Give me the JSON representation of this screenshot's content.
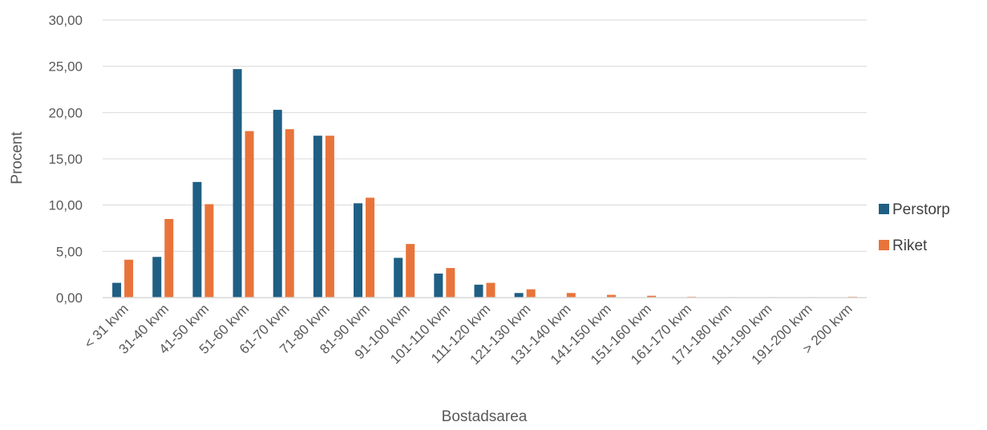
{
  "chart_data": {
    "type": "bar",
    "title": "",
    "xlabel": "Bostadsarea",
    "ylabel": "Procent",
    "ylim": [
      0,
      30
    ],
    "yticks": [
      "0,00",
      "5,00",
      "10,00",
      "15,00",
      "20,00",
      "25,00",
      "30,00"
    ],
    "grid": true,
    "legend_position": "right",
    "categories": [
      "< 31 kvm",
      "31-40 kvm",
      "41-50 kvm",
      "51-60 kvm",
      "61-70 kvm",
      "71-80 kvm",
      "81-90 kvm",
      "91-100 kvm",
      "101-110 kvm",
      "111-120 kvm",
      "121-130 kvm",
      "131-140 kvm",
      "141-150 kvm",
      "151-160 kvm",
      "161-170 kvm",
      "171-180 kvm",
      "181-190 kvm",
      "191-200 kvm",
      "> 200 kvm"
    ],
    "series": [
      {
        "name": "Perstorp",
        "color": "#1f5f84",
        "values": [
          1.6,
          4.4,
          12.5,
          24.7,
          20.3,
          17.5,
          10.2,
          4.3,
          2.6,
          1.4,
          0.5,
          0.0,
          0.0,
          0.0,
          0.0,
          0.0,
          0.0,
          0.0,
          0.0
        ]
      },
      {
        "name": "Riket",
        "color": "#e8743b",
        "values": [
          4.1,
          8.5,
          10.1,
          18.0,
          18.2,
          17.5,
          10.8,
          5.8,
          3.2,
          1.6,
          0.9,
          0.5,
          0.3,
          0.2,
          0.1,
          0.05,
          0.05,
          0.05,
          0.1
        ]
      }
    ]
  }
}
